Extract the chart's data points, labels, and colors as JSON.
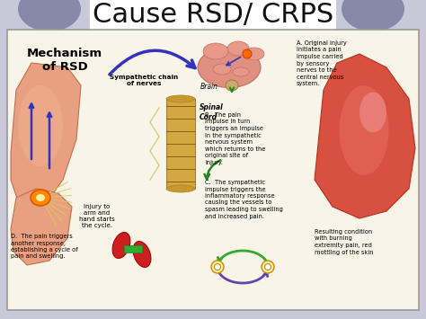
{
  "title": "Cause RSD/ CRPS",
  "title_fontsize": 22,
  "title_color": "#111111",
  "slide_bg": "#c8c8d8",
  "content_bg": "#f8f4e8",
  "content_border": "#999999",
  "tab_color_dark": "#8888aa",
  "tab_color_light": "#ccccdd",
  "diagram_title": "Mechanism\nof RSD",
  "label_brain": "Brain",
  "label_spinal": "Spinal\nCord",
  "label_sympathetic": "Sympathetic chain\nof nerves",
  "label_injury": "Injury to\narm and\nhand starts\nthe cycle.",
  "text_A": "A. Original injury\ninitiates a pain\nimpulse carried\nby sensory\nnerves to the\ncentral nervous\nsystem.",
  "text_B": "B.  The pain\nimpulse in turn\ntriggers an impulse\nin the sympathetic\nnervous system\nwhich returns to the\noriginal site of\ninjury.",
  "text_C": "C.  The sympathetic\nimpulse triggers the\ninflammatory response\ncausing the vessels to\nspasm leading to swelling\nand increased pain.",
  "text_D": "D.  The pain triggers\nanother response,\nestablishing a cycle of\npain and swelling.",
  "text_result": "Resulting condition\nwith burning\nextremity pain, red\nmottling of the skin"
}
